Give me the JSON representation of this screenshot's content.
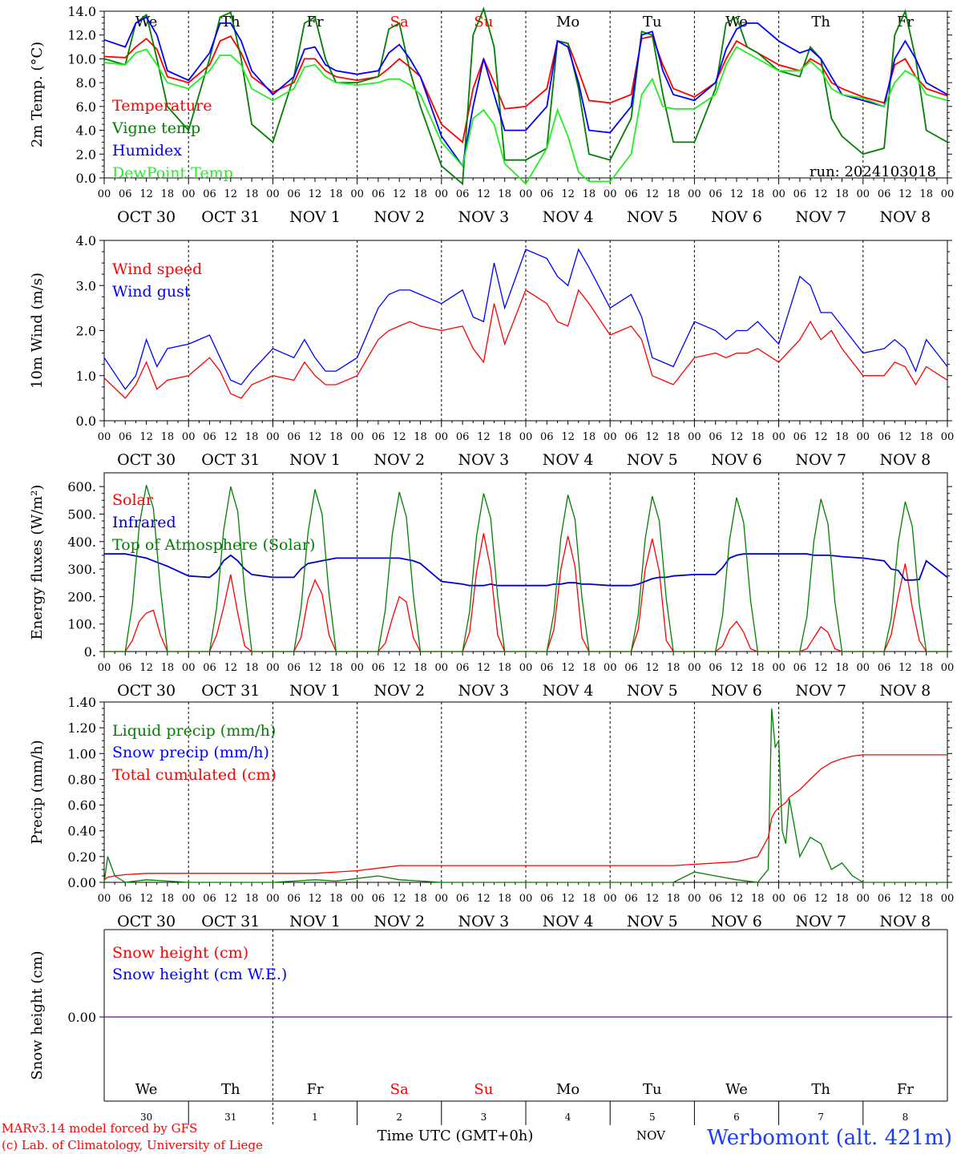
{
  "chart_data": [
    {
      "type": "line",
      "ylabel": "2m Temp. (°C)",
      "ylim": [
        -0.5,
        14.0
      ],
      "yticks": [
        "0.0",
        "2.0",
        "4.0",
        "6.0",
        "8.0",
        "10.0",
        "12.0",
        "14.0"
      ],
      "annotation": "run: 2024103018",
      "x_hours": [
        0,
        6,
        9,
        12,
        15,
        18,
        24,
        30,
        33,
        36,
        39,
        42,
        48,
        54,
        57,
        60,
        63,
        66,
        72,
        78,
        81,
        84,
        87,
        90,
        96,
        102,
        105,
        108,
        111,
        114,
        120,
        126,
        129,
        132,
        135,
        138,
        144,
        150,
        153,
        156,
        159,
        162,
        168,
        174,
        177,
        180,
        183,
        186,
        192,
        198,
        201,
        204,
        207,
        210,
        216,
        222,
        225,
        228,
        231,
        234,
        240
      ],
      "series": [
        {
          "name": "Temperature",
          "color": "#ff0000",
          "values": [
            10.2,
            10.1,
            11.0,
            11.7,
            10.8,
            8.5,
            8.0,
            9.5,
            11.5,
            11.9,
            10.5,
            8.5,
            7.2,
            8.0,
            10.0,
            10.0,
            9.0,
            8.5,
            8.2,
            8.5,
            9.2,
            10.0,
            9.3,
            8.5,
            4.5,
            3.0,
            7.5,
            10.0,
            8.0,
            5.8,
            6.0,
            7.5,
            11.5,
            11.3,
            9.0,
            6.5,
            6.3,
            7.0,
            11.7,
            11.9,
            9.5,
            7.5,
            6.8,
            8.0,
            10.0,
            11.5,
            11.0,
            10.5,
            9.5,
            9.0,
            10.0,
            9.5,
            8.0,
            7.5,
            6.8,
            6.3,
            9.5,
            10.0,
            8.5,
            7.5,
            6.9
          ]
        },
        {
          "name": "Vigne temp",
          "color": "#008000",
          "values": [
            10.0,
            9.5,
            13.0,
            13.7,
            10.0,
            6.0,
            4.0,
            10.0,
            13.5,
            13.9,
            10.0,
            4.5,
            3.0,
            8.5,
            13.0,
            13.5,
            10.0,
            8.0,
            8.0,
            8.5,
            12.5,
            13.0,
            9.0,
            6.0,
            1.0,
            -0.5,
            12.0,
            14.2,
            11.0,
            1.5,
            1.5,
            2.5,
            11.5,
            11.3,
            7.5,
            2.0,
            1.5,
            5.0,
            12.3,
            12.0,
            7.0,
            3.0,
            3.0,
            7.5,
            13.0,
            13.5,
            11.0,
            10.5,
            9.0,
            8.5,
            11.0,
            10.0,
            5.0,
            3.5,
            2.0,
            2.5,
            12.0,
            14.0,
            10.0,
            4.0,
            3.0
          ]
        },
        {
          "name": "Humidex",
          "color": "#0000ff",
          "values": [
            11.6,
            11.0,
            13.0,
            13.5,
            12.0,
            9.0,
            8.2,
            10.5,
            13.0,
            13.0,
            11.5,
            9.0,
            7.0,
            8.5,
            10.8,
            11.0,
            9.5,
            9.0,
            8.7,
            9.0,
            10.5,
            11.2,
            10.0,
            8.5,
            3.5,
            1.0,
            6.0,
            10.0,
            7.0,
            4.0,
            4.0,
            6.0,
            11.5,
            11.0,
            8.0,
            4.0,
            3.8,
            6.0,
            12.0,
            12.3,
            9.0,
            7.0,
            6.5,
            8.0,
            10.8,
            12.5,
            13.0,
            13.0,
            11.5,
            10.5,
            10.8,
            10.0,
            8.5,
            7.0,
            6.5,
            6.0,
            10.0,
            11.5,
            10.0,
            8.0,
            7.0
          ]
        },
        {
          "name": "DewPoint Temp",
          "color": "#22ee22",
          "values": [
            9.7,
            9.5,
            10.5,
            10.8,
            9.5,
            8.0,
            7.5,
            9.0,
            10.3,
            10.3,
            9.5,
            7.5,
            6.5,
            7.5,
            9.3,
            9.5,
            8.5,
            8.0,
            7.8,
            8.0,
            8.3,
            8.3,
            7.8,
            7.0,
            3.0,
            1.0,
            5.0,
            5.7,
            4.5,
            1.2,
            -0.5,
            2.5,
            5.7,
            3.5,
            0.5,
            -0.3,
            -0.3,
            2.0,
            7.0,
            8.3,
            6.0,
            5.8,
            5.8,
            7.0,
            9.5,
            11.0,
            10.5,
            10.0,
            9.0,
            9.0,
            9.8,
            9.0,
            7.5,
            7.0,
            6.7,
            6.0,
            8.0,
            9.0,
            8.5,
            7.0,
            6.5
          ]
        }
      ],
      "grid": false
    },
    {
      "type": "line",
      "ylabel": "10m Wind (m/s)",
      "ylim": [
        0.0,
        4.0
      ],
      "yticks": [
        "0.0",
        "1.0",
        "2.0",
        "3.0",
        "4.0"
      ],
      "x_hours": [
        0,
        6,
        9,
        12,
        15,
        18,
        24,
        30,
        33,
        36,
        39,
        42,
        48,
        54,
        57,
        60,
        63,
        66,
        72,
        78,
        81,
        84,
        87,
        90,
        96,
        102,
        105,
        108,
        111,
        114,
        120,
        126,
        129,
        132,
        135,
        138,
        144,
        150,
        153,
        156,
        159,
        162,
        168,
        174,
        177,
        180,
        183,
        186,
        192,
        198,
        201,
        204,
        207,
        210,
        216,
        222,
        225,
        228,
        231,
        234,
        240
      ],
      "series": [
        {
          "name": "Wind speed",
          "color": "#ff0000",
          "values": [
            0.95,
            0.5,
            0.8,
            1.3,
            0.7,
            0.9,
            1.0,
            1.4,
            1.1,
            0.6,
            0.5,
            0.8,
            1.0,
            0.9,
            1.3,
            1.0,
            0.8,
            0.8,
            1.0,
            1.8,
            2.0,
            2.1,
            2.2,
            2.1,
            2.0,
            2.1,
            1.6,
            1.3,
            2.6,
            1.7,
            2.9,
            2.6,
            2.2,
            2.1,
            2.9,
            2.6,
            1.9,
            2.1,
            1.8,
            1.0,
            0.9,
            0.8,
            1.4,
            1.5,
            1.4,
            1.5,
            1.5,
            1.6,
            1.3,
            1.8,
            2.2,
            1.8,
            2.0,
            1.6,
            1.0,
            1.0,
            1.3,
            1.2,
            0.8,
            1.2,
            0.9
          ]
        },
        {
          "name": "Wind gust",
          "color": "#0000ff",
          "values": [
            1.4,
            0.7,
            1.0,
            1.8,
            1.2,
            1.6,
            1.7,
            1.9,
            1.4,
            0.9,
            0.8,
            1.1,
            1.6,
            1.4,
            1.8,
            1.4,
            1.1,
            1.1,
            1.4,
            2.5,
            2.8,
            2.9,
            2.9,
            2.8,
            2.6,
            2.9,
            2.3,
            2.2,
            3.5,
            2.5,
            3.8,
            3.6,
            3.2,
            3.0,
            3.8,
            3.4,
            2.5,
            2.8,
            2.3,
            1.4,
            1.3,
            1.2,
            2.2,
            2.0,
            1.8,
            2.0,
            2.0,
            2.2,
            1.7,
            3.2,
            3.0,
            2.4,
            2.4,
            2.1,
            1.5,
            1.6,
            1.8,
            1.6,
            1.1,
            1.8,
            1.2
          ]
        }
      ],
      "grid": false
    },
    {
      "type": "line",
      "ylabel": "Energy fluxes (W/m²)",
      "ylim": [
        0,
        650
      ],
      "yticks": [
        "0.",
        "100.",
        "200.",
        "300.",
        "400.",
        "500.",
        "600."
      ],
      "x_hours": [
        0,
        6,
        8,
        10,
        12,
        14,
        16,
        18,
        24,
        30,
        32,
        34,
        36,
        38,
        40,
        42,
        48,
        54,
        56,
        58,
        60,
        62,
        64,
        66,
        72,
        78,
        80,
        82,
        84,
        86,
        88,
        90,
        96,
        102,
        104,
        106,
        108,
        110,
        112,
        114,
        120,
        126,
        128,
        130,
        132,
        134,
        136,
        138,
        144,
        150,
        152,
        154,
        156,
        158,
        160,
        162,
        168,
        174,
        176,
        178,
        180,
        182,
        184,
        186,
        192,
        198,
        200,
        202,
        204,
        206,
        208,
        210,
        216,
        222,
        224,
        226,
        228,
        230,
        232,
        234,
        240
      ],
      "series": [
        {
          "name": "Solar",
          "color": "#ff0000",
          "values": [
            0,
            0,
            40,
            110,
            140,
            150,
            60,
            0,
            0,
            0,
            60,
            160,
            280,
            140,
            20,
            0,
            0,
            0,
            50,
            190,
            260,
            210,
            60,
            0,
            0,
            0,
            30,
            120,
            200,
            180,
            50,
            0,
            0,
            0,
            70,
            290,
            430,
            300,
            60,
            0,
            0,
            0,
            80,
            300,
            420,
            310,
            50,
            0,
            0,
            0,
            80,
            300,
            410,
            290,
            40,
            0,
            0,
            0,
            20,
            80,
            110,
            70,
            10,
            0,
            0,
            0,
            10,
            50,
            90,
            70,
            10,
            0,
            0,
            0,
            60,
            200,
            320,
            160,
            40,
            0,
            0
          ]
        },
        {
          "name": "Infrared",
          "color": "#0000cc",
          "values": [
            355,
            355,
            350,
            345,
            340,
            330,
            320,
            310,
            275,
            270,
            290,
            330,
            350,
            330,
            300,
            280,
            270,
            270,
            300,
            320,
            325,
            330,
            335,
            340,
            340,
            340,
            340,
            340,
            340,
            335,
            330,
            320,
            255,
            245,
            240,
            240,
            240,
            245,
            240,
            240,
            240,
            240,
            245,
            245,
            250,
            250,
            245,
            245,
            240,
            240,
            245,
            255,
            265,
            270,
            270,
            275,
            280,
            280,
            305,
            340,
            350,
            355,
            355,
            355,
            355,
            355,
            355,
            350,
            350,
            350,
            348,
            345,
            340,
            330,
            300,
            295,
            260,
            260,
            262,
            330,
            270
          ]
        },
        {
          "name": "Top of Atmosphere (Solar)",
          "color": "#008000",
          "values": [
            0,
            0,
            170,
            460,
            605,
            520,
            230,
            0,
            0,
            0,
            160,
            440,
            600,
            510,
            220,
            0,
            0,
            0,
            155,
            430,
            590,
            500,
            210,
            0,
            0,
            0,
            150,
            425,
            580,
            490,
            205,
            0,
            0,
            0,
            145,
            420,
            575,
            485,
            200,
            0,
            0,
            0,
            140,
            415,
            570,
            480,
            195,
            0,
            0,
            0,
            135,
            410,
            565,
            475,
            190,
            0,
            0,
            0,
            130,
            405,
            560,
            470,
            185,
            0,
            0,
            0,
            125,
            400,
            555,
            465,
            180,
            0,
            0,
            0,
            120,
            395,
            545,
            455,
            175,
            0,
            0
          ]
        }
      ],
      "grid": false
    },
    {
      "type": "line",
      "ylabel": "Precip (mm/h)",
      "ylim": [
        0.0,
        1.4
      ],
      "yticks": [
        "0.00",
        "0.20",
        "0.40",
        "0.60",
        "0.80",
        "1.00",
        "1.20",
        "1.40"
      ],
      "x_hours": [
        0,
        1,
        3,
        6,
        12,
        24,
        48,
        60,
        66,
        72,
        78,
        84,
        96,
        120,
        144,
        162,
        168,
        174,
        180,
        186,
        189,
        190,
        191,
        192,
        193,
        194,
        195,
        198,
        201,
        204,
        207,
        210,
        213,
        216,
        222,
        228,
        234,
        240
      ],
      "series": [
        {
          "name": "Liquid precip (mm/h)",
          "color": "#008000",
          "values": [
            0.0,
            0.2,
            0.05,
            0.0,
            0.02,
            0.0,
            0.0,
            0.02,
            0.01,
            0.03,
            0.05,
            0.02,
            0.0,
            0.0,
            0.0,
            0.0,
            0.08,
            0.05,
            0.02,
            0.0,
            0.1,
            1.35,
            1.05,
            1.1,
            0.4,
            0.3,
            0.65,
            0.2,
            0.35,
            0.3,
            0.1,
            0.15,
            0.05,
            0.0,
            0.0,
            0.0,
            0.0,
            0.0
          ]
        },
        {
          "name": "Total cumulated (cm)",
          "color": "#ff0000",
          "values": [
            0.02,
            0.04,
            0.05,
            0.06,
            0.07,
            0.07,
            0.07,
            0.07,
            0.08,
            0.09,
            0.11,
            0.13,
            0.13,
            0.13,
            0.13,
            0.13,
            0.14,
            0.15,
            0.16,
            0.2,
            0.35,
            0.5,
            0.55,
            0.58,
            0.6,
            0.62,
            0.66,
            0.72,
            0.8,
            0.88,
            0.93,
            0.96,
            0.98,
            0.99,
            0.99,
            0.99,
            0.99,
            0.99
          ]
        }
      ],
      "extra_legend": {
        "name": "Snow precip (mm/h)",
        "color": "#0000ff"
      },
      "grid": false
    },
    {
      "type": "line",
      "ylabel": "Snow height (cm)",
      "yticks": [
        "0.00"
      ],
      "series": [
        {
          "name": "Snow height (cm)",
          "color": "#ff0000",
          "values": [
            0,
            0
          ]
        },
        {
          "name": "Snow height (cm W.E.)",
          "color": "#0000ff",
          "values": [
            0,
            0
          ]
        }
      ],
      "grid": false
    }
  ],
  "x_axis": {
    "hour_ticks": [
      "00",
      "06",
      "12",
      "18"
    ],
    "day_labels": [
      "OCT 30",
      "OCT 31",
      "NOV  1",
      "NOV  2",
      "NOV  3",
      "NOV  4",
      "NOV  5",
      "NOV  6",
      "NOV  7",
      "NOV  8"
    ],
    "weekdays": [
      "We",
      "Th",
      "Fr",
      "Sa",
      "Su",
      "Mo",
      "Tu",
      "We",
      "Th",
      "Fr"
    ],
    "weekday_colors": [
      "#000000",
      "#000000",
      "#000000",
      "#ff0000",
      "#ff0000",
      "#000000",
      "#000000",
      "#000000",
      "#000000",
      "#000000"
    ],
    "day_numbers": [
      "30",
      "31",
      "1",
      "2",
      "3",
      "4",
      "5",
      "6",
      "7",
      "8"
    ],
    "bottom_month_label": "NOV",
    "bottom_title": "Time UTC (GMT+0h)"
  },
  "footer": {
    "model_line": "MARv3.14 model forced by GFS",
    "credit_line": "(c) Lab. of Climatology, University of Liege",
    "location": "Werbomont (alt. 421m)"
  }
}
